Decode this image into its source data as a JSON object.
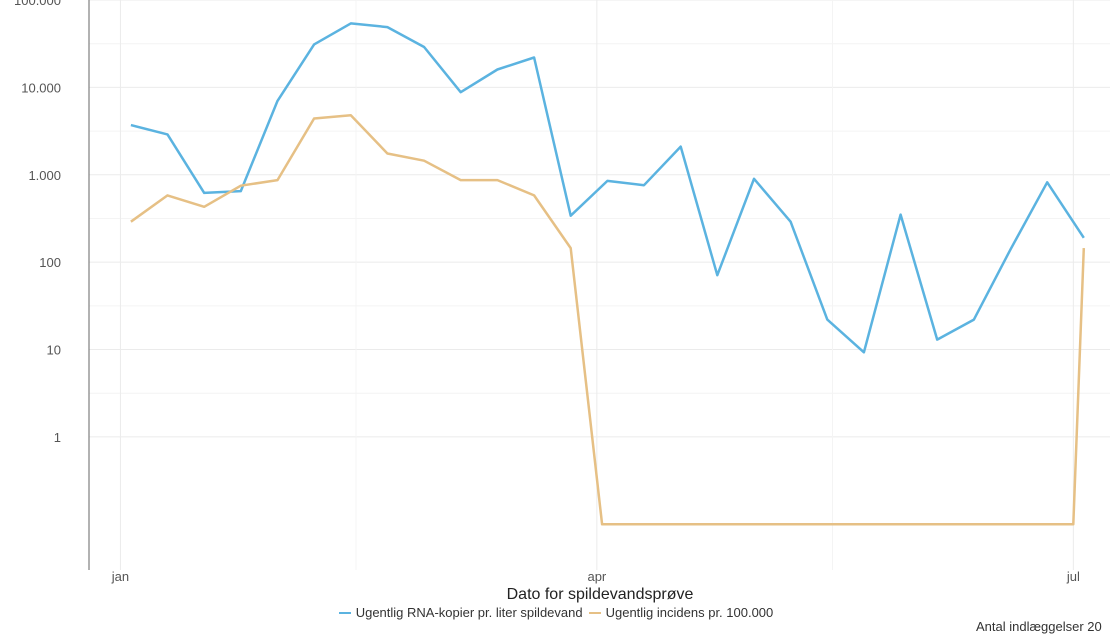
{
  "chart_data": {
    "type": "line",
    "xlabel": "Dato for spildevandsprøve",
    "ylabel": "",
    "y_scale": "log",
    "grid": true,
    "legend_position": "bottom",
    "x_ticks": [
      {
        "date": "2024-01-01",
        "label": "jan"
      },
      {
        "date": "2024-04-01",
        "label": "apr"
      },
      {
        "date": "2024-07-01",
        "label": "jul"
      }
    ],
    "y_ticks": [
      {
        "value": 1,
        "label": "1"
      },
      {
        "value": 10,
        "label": "10"
      },
      {
        "value": 100,
        "label": "100"
      },
      {
        "value": 1000,
        "label": "1.000"
      },
      {
        "value": 10000,
        "label": "10.000"
      },
      {
        "value": 100000,
        "label": "100.000"
      }
    ],
    "xlim": [
      "2023-12-26",
      "2024-07-08"
    ],
    "ylim": [
      0.03,
      100000
    ],
    "x": [
      "2024-01-03",
      "2024-01-10",
      "2024-01-17",
      "2024-01-24",
      "2024-01-31",
      "2024-02-07",
      "2024-02-14",
      "2024-02-21",
      "2024-02-28",
      "2024-03-06",
      "2024-03-13",
      "2024-03-20",
      "2024-03-27",
      "2024-04-03",
      "2024-04-10",
      "2024-04-17",
      "2024-04-24",
      "2024-05-01",
      "2024-05-08",
      "2024-05-15",
      "2024-05-22",
      "2024-05-29",
      "2024-06-05",
      "2024-06-12",
      "2024-06-19",
      "2024-06-26",
      "2024-07-03"
    ],
    "series": [
      {
        "name": "Ugentlig RNA-kopier pr. liter spildevand",
        "color": "#5bb3e0",
        "values": [
          3700,
          2900,
          620,
          650,
          7000,
          31000,
          54000,
          49000,
          29000,
          8800,
          16000,
          22000,
          340,
          850,
          760,
          2100,
          71,
          900,
          290,
          22,
          9.3,
          350,
          13,
          22,
          140,
          820,
          190
        ]
      },
      {
        "name": "Ugentlig incidens pr. 100.000",
        "color": "#e6c085",
        "values": [
          290,
          580,
          430,
          750,
          870,
          4400,
          4800,
          1750,
          1450,
          870,
          870,
          580,
          145,
          null,
          null,
          null,
          null,
          null,
          null,
          null,
          null,
          null,
          null,
          null,
          null,
          null,
          145
        ]
      }
    ],
    "floor_segment": {
      "series": "Ugentlig incidens pr. 100.000",
      "value": 0.1,
      "x": [
        "2024-04-02",
        "2024-07-01"
      ]
    }
  },
  "footnote": "Antal indlæggelser 20"
}
